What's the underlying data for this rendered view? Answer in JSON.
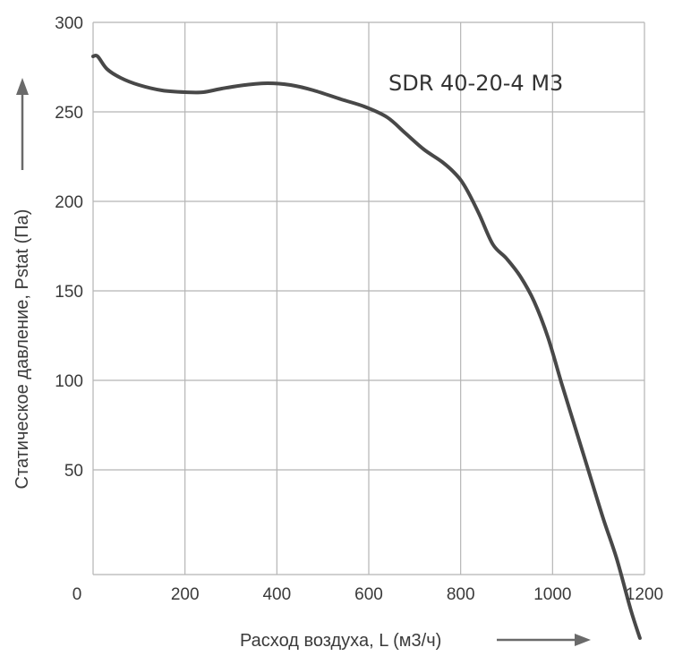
{
  "chart_data": {
    "type": "line",
    "title": "",
    "annotation": "SDR 40-20-4 M3",
    "xlabel": "Расход воздуха, L (м3/ч)",
    "ylabel": "Статическое давление, Pstat (Па)",
    "xlim": [
      0,
      1200
    ],
    "ylim": [
      -10,
      300
    ],
    "x_ticks": [
      "0",
      "200",
      "400",
      "600",
      "800",
      "1000",
      "1200"
    ],
    "x_tick_values": [
      0,
      200,
      400,
      600,
      800,
      1000,
      1200
    ],
    "y_ticks": [
      "50",
      "100",
      "150",
      "200",
      "250",
      "300"
    ],
    "y_tick_values": [
      50,
      100,
      150,
      200,
      250,
      300
    ],
    "grid": true,
    "colors": {
      "line": "#484848",
      "grid": "#b5b5b5",
      "text": "#3a3a3a",
      "arrow": "#6a6a6a"
    },
    "series": [
      {
        "x": [
          0,
          10,
          30,
          60,
          100,
          150,
          200,
          240,
          280,
          330,
          380,
          430,
          480,
          540,
          590,
          640,
          680,
          720,
          760,
          790,
          810,
          840,
          870,
          900,
          930,
          960,
          990,
          1020,
          1050,
          1080,
          1110,
          1140,
          1170,
          1190
        ],
        "y": [
          281,
          281,
          274,
          269,
          265,
          262,
          261,
          261,
          263,
          265,
          266,
          265,
          262,
          257,
          253,
          247,
          238,
          229,
          222,
          215,
          208,
          193,
          176,
          168,
          158,
          144,
          124,
          98,
          73,
          48,
          23,
          0,
          -28,
          -44
        ]
      }
    ]
  }
}
